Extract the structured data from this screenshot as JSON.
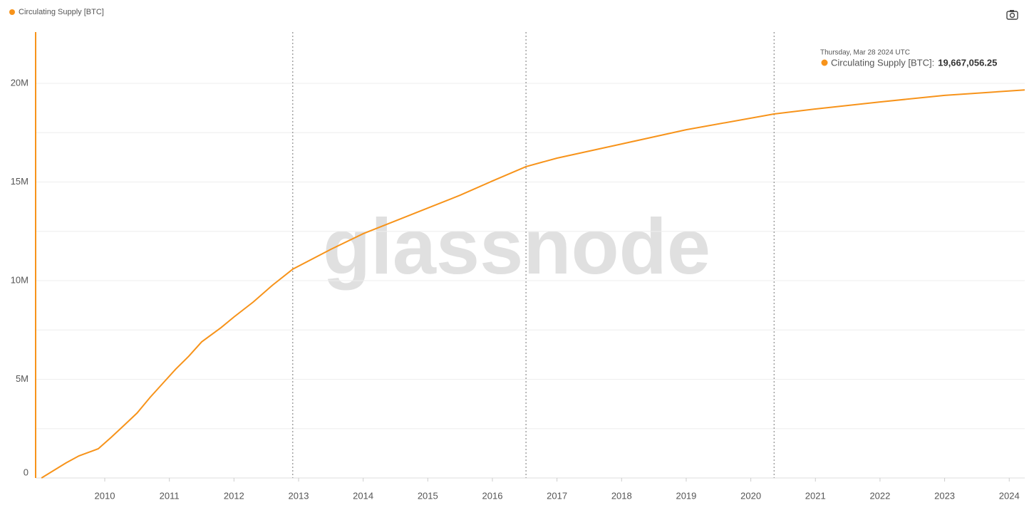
{
  "chart_data": {
    "type": "line",
    "watermark": "glassnode",
    "xlim": [
      2008.93,
      2024.24
    ],
    "xticks": [
      2010,
      2011,
      2012,
      2013,
      2014,
      2015,
      2016,
      2017,
      2018,
      2019,
      2020,
      2021,
      2022,
      2023,
      2024
    ],
    "ylim": [
      0,
      22600000
    ],
    "yticks": [
      0,
      {
        "value": 5000000,
        "label": "5M"
      },
      {
        "value": 10000000,
        "label": "10M"
      },
      {
        "value": 15000000,
        "label": "15M"
      },
      {
        "value": 20000000,
        "label": "20M"
      }
    ],
    "ygrid": [
      2500000,
      7500000,
      12500000,
      17500000
    ],
    "grid": true,
    "halvings": [
      2012.91,
      2016.52,
      2020.36
    ],
    "legend": "top-left",
    "x": [
      2009.02,
      2009.4,
      2009.6,
      2009.9,
      2010.1,
      2010.3,
      2010.5,
      2010.7,
      2010.9,
      2011.1,
      2011.3,
      2011.5,
      2011.8,
      2012.0,
      2012.3,
      2012.6,
      2012.91,
      2013.5,
      2014.0,
      2014.5,
      2015.0,
      2015.5,
      2016.0,
      2016.52,
      2017.0,
      2018.0,
      2019.0,
      2020.36,
      2021.0,
      2022.0,
      2023.0,
      2024.24
    ],
    "series": [
      {
        "name": "Circulating Supply [BTC]",
        "color": "#f7931a",
        "values": [
          0,
          760000,
          1120000,
          1480000,
          2060000,
          2670000,
          3290000,
          4080000,
          4800000,
          5520000,
          6170000,
          6900000,
          7620000,
          8160000,
          8920000,
          9780000,
          10580000,
          11590000,
          12380000,
          13030000,
          13680000,
          14330000,
          15050000,
          15780000,
          16210000,
          16930000,
          17650000,
          18450000,
          18700000,
          19060000,
          19390000,
          19667056.25
        ]
      }
    ],
    "tooltip": {
      "date": "Thursday, Mar 28 2024 UTC",
      "label": "Circulating Supply [BTC]:",
      "value": 19667056.25,
      "value_label": "19,667,056.25"
    }
  }
}
